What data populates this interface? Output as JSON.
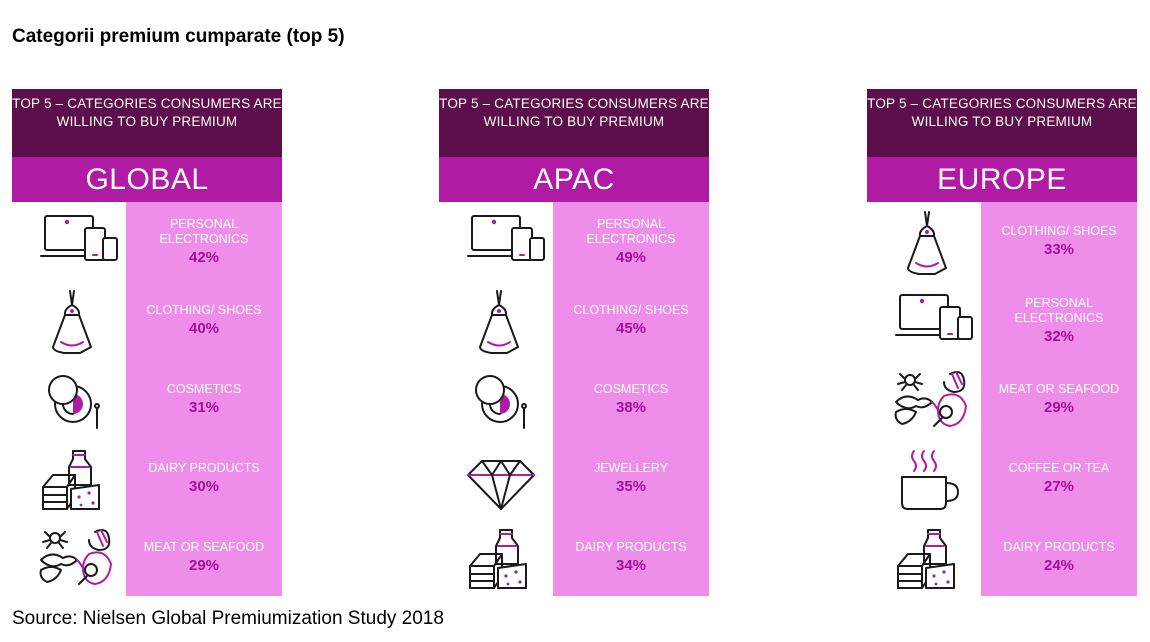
{
  "title": "Categorii premium cumparate (top 5)",
  "source": "Source: Nielsen Global Premiumization Study 2018",
  "colors": {
    "header_dark": "#5c0f4b",
    "header_region": "#b01ba4",
    "column": "#ef8eea",
    "value": "#a3109a"
  },
  "chart_data": [
    {
      "type": "table",
      "header": "TOP 5 – CATEGORIES CONSUMERS  ARE WILLING TO BUY PREMIUM",
      "region": "GLOBAL",
      "rows": [
        {
          "label": "PERSONAL ELECTRONICS",
          "value": "42%",
          "icon": "electronics-icon"
        },
        {
          "label": "CLOTHING/ SHOES",
          "value": "40%",
          "icon": "dress-icon"
        },
        {
          "label": "COSMETICS",
          "value": "31%",
          "icon": "cosmetics-icon"
        },
        {
          "label": "DAIRY PRODUCTS",
          "value": "30%",
          "icon": "dairy-icon"
        },
        {
          "label": "MEAT OR SEAFOOD",
          "value": "29%",
          "icon": "meat-seafood-icon"
        }
      ]
    },
    {
      "type": "table",
      "header": "TOP 5 – CATEGORIES CONSUMERS  ARE WILLING TO BUY PREMIUM",
      "region": "APAC",
      "rows": [
        {
          "label": "PERSONAL ELECTRONICS",
          "value": "49%",
          "icon": "electronics-icon"
        },
        {
          "label": "CLOTHING/ SHOES",
          "value": "45%",
          "icon": "dress-icon"
        },
        {
          "label": "COSMETICS",
          "value": "38%",
          "icon": "cosmetics-icon"
        },
        {
          "label": "JEWELLERY",
          "value": "35%",
          "icon": "diamond-icon"
        },
        {
          "label": "DAIRY PRODUCTS",
          "value": "34%",
          "icon": "dairy-icon"
        }
      ]
    },
    {
      "type": "table",
      "header": "TOP 5 – CATEGORIES CONSUMERS  ARE WILLING TO BUY PREMIUM",
      "region": "EUROPE",
      "rows": [
        {
          "label": "CLOTHING/ SHOES",
          "value": "33%",
          "icon": "dress-icon"
        },
        {
          "label": "PERSONAL ELECTRONICS",
          "value": "32%",
          "icon": "electronics-icon"
        },
        {
          "label": "MEAT OR SEAFOOD",
          "value": "29%",
          "icon": "meat-seafood-icon"
        },
        {
          "label": "COFFEE OR TEA",
          "value": "27%",
          "icon": "coffee-cup-icon"
        },
        {
          "label": "DAIRY PRODUCTS",
          "value": "24%",
          "icon": "dairy-icon"
        }
      ]
    }
  ]
}
